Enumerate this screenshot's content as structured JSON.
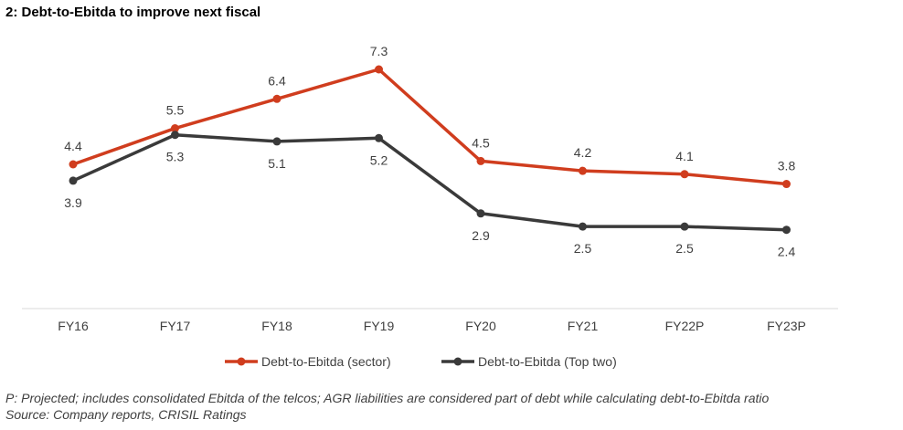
{
  "title": "2: Debt-to-Ebitda to improve next fiscal",
  "chart_data": {
    "type": "line",
    "title": "2: Debt-to-Ebitda to improve next fiscal",
    "categories": [
      "FY16",
      "FY17",
      "FY18",
      "FY19",
      "FY20",
      "FY21",
      "FY22P",
      "FY23P"
    ],
    "series": [
      {
        "name": "Debt-to-Ebitda (sector)",
        "color": "#d03d1e",
        "values": [
          4.4,
          5.5,
          6.4,
          7.3,
          4.5,
          4.2,
          4.1,
          3.8
        ]
      },
      {
        "name": "Debt-to-Ebitda (Top two)",
        "color": "#3a3a3a",
        "values": [
          3.9,
          5.3,
          5.1,
          5.2,
          2.9,
          2.5,
          2.5,
          2.4
        ]
      }
    ],
    "xlabel": "",
    "ylabel": "",
    "ylim": [
      0,
      7.3
    ],
    "grid": false,
    "legend_position": "bottom"
  },
  "footnotes": {
    "note": "P: Projected; includes consolidated Ebitda of the telcos; AGR liabilities are considered part of debt while calculating debt-to-Ebitda ratio",
    "source": "Source: Company reports, CRISIL Ratings"
  }
}
